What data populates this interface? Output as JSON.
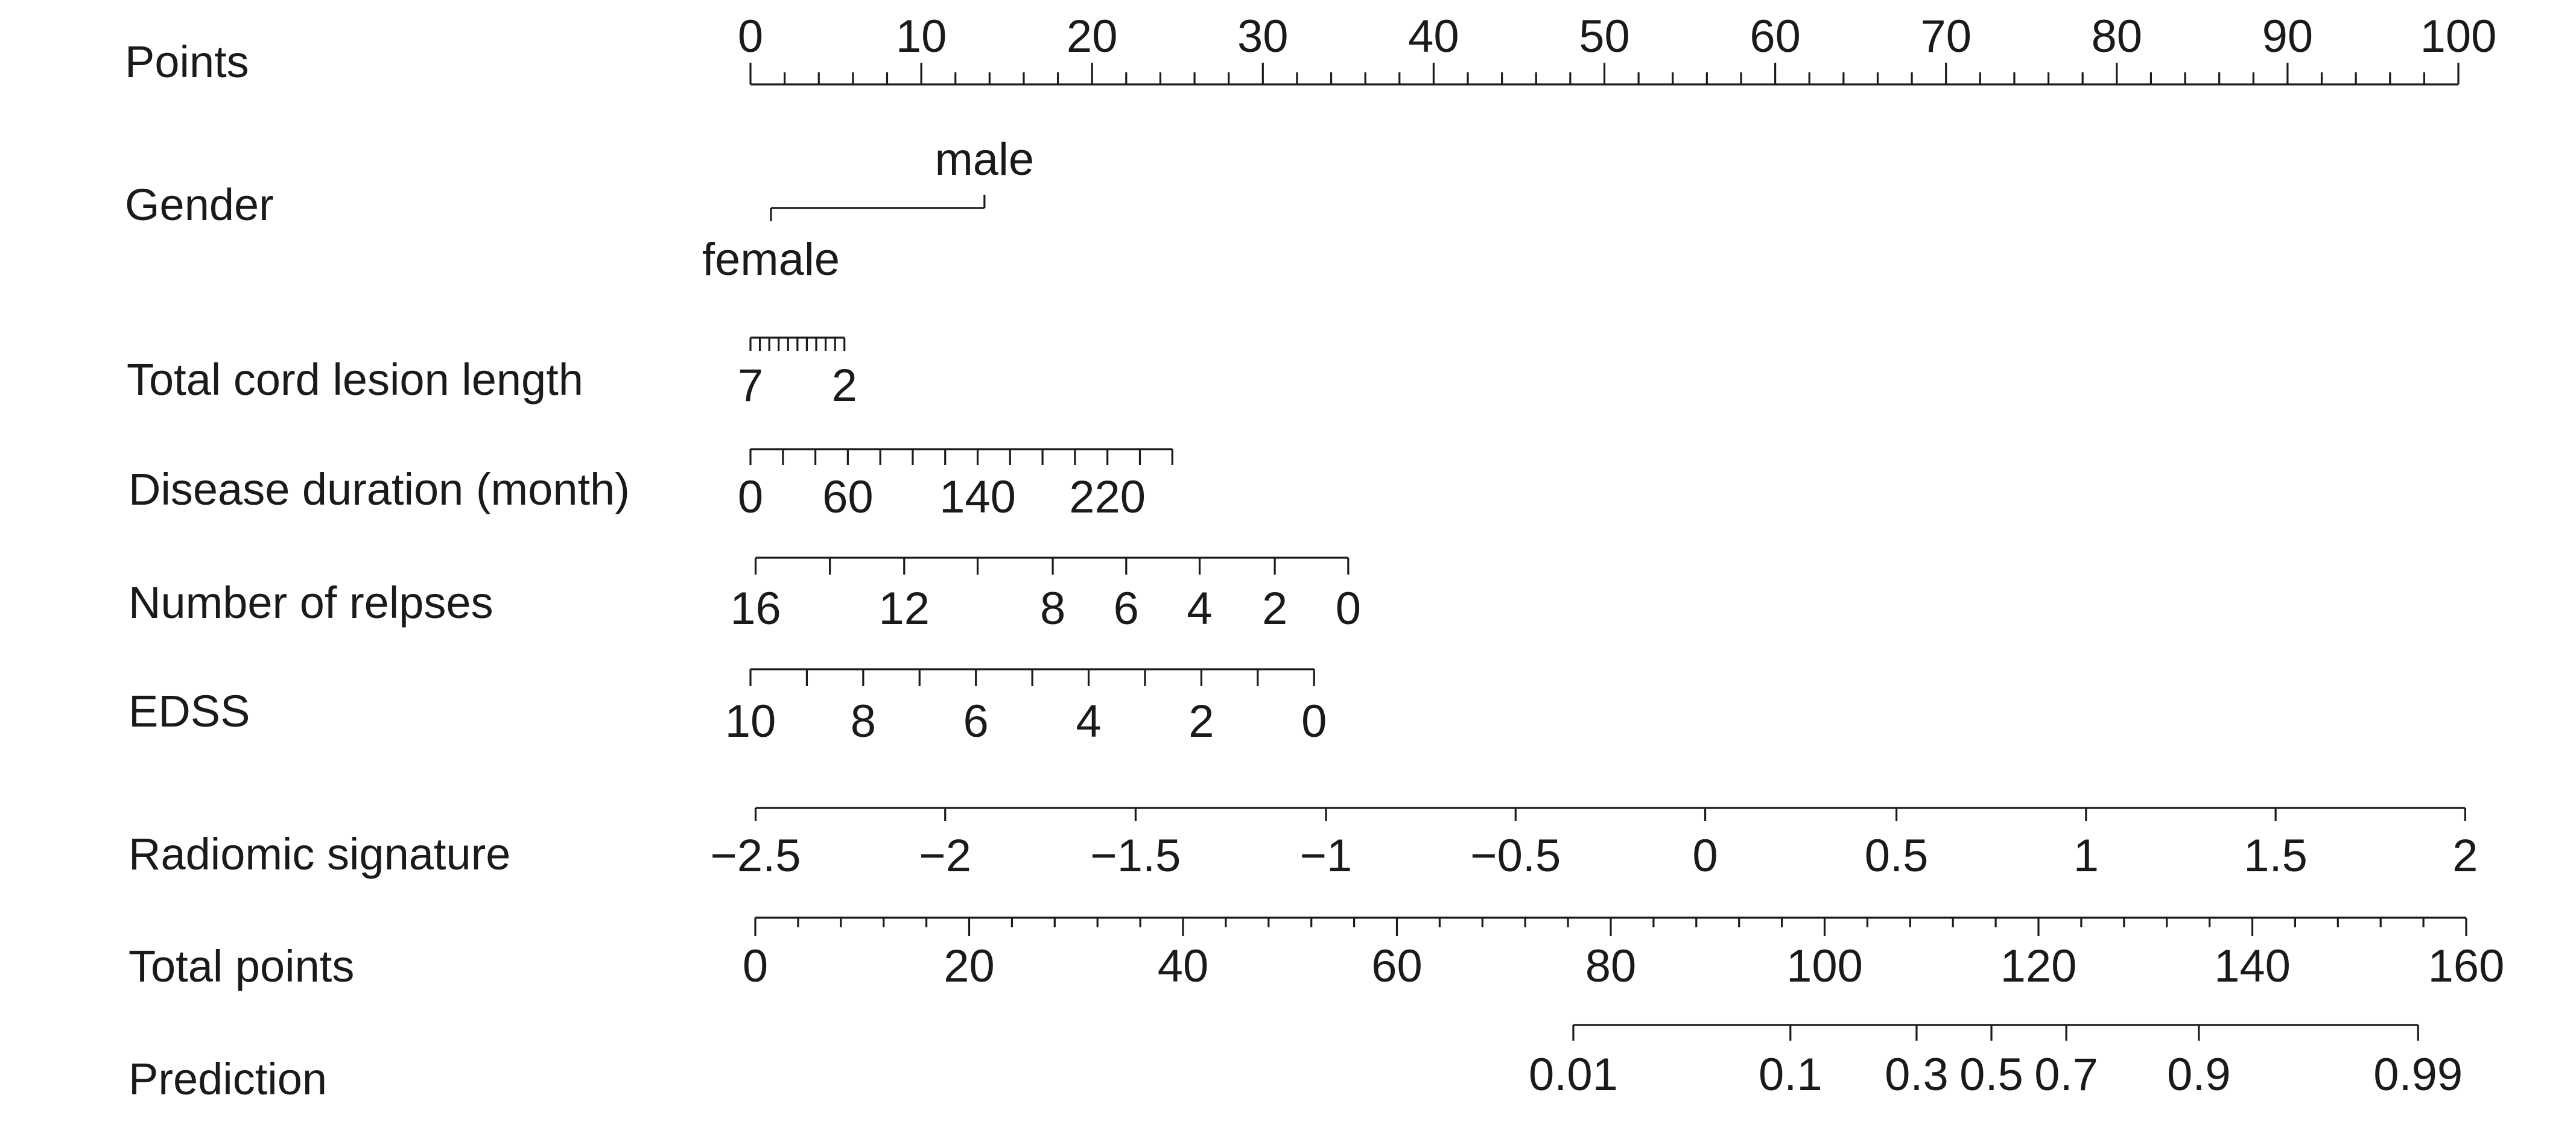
{
  "chart_data": {
    "type": "nomogram",
    "points_range": [
      0,
      100
    ],
    "rows": [
      {
        "key": "points",
        "label": "Points",
        "tick_labels": [
          "0",
          "10",
          "20",
          "30",
          "40",
          "50",
          "60",
          "70",
          "80",
          "90",
          "100"
        ],
        "values": [
          0,
          10,
          20,
          30,
          40,
          50,
          60,
          70,
          80,
          90,
          100
        ],
        "minor_step": 2,
        "label_side": "above",
        "points_at": [
          0,
          10,
          20,
          30,
          40,
          50,
          60,
          70,
          80,
          90,
          100
        ]
      },
      {
        "key": "gender",
        "label": "Gender",
        "categories": [
          {
            "label": "female",
            "points": 1.2,
            "label_side": "below"
          },
          {
            "label": "male",
            "points": 13.7,
            "label_side": "above"
          }
        ]
      },
      {
        "key": "total_cord_lesion_length",
        "label": "Total cord lesion length",
        "tick_labels": [
          "7",
          "2"
        ],
        "labeled_values": [
          7,
          2
        ],
        "values": [
          7,
          6.5,
          6,
          5.5,
          5,
          4.5,
          4,
          3.5,
          3,
          2.5,
          2
        ],
        "points_at": [
          0,
          0.55,
          1.1,
          1.65,
          2.2,
          2.75,
          3.3,
          3.85,
          4.4,
          4.95,
          5.5
        ]
      },
      {
        "key": "disease_duration",
        "label": "Disease duration (month)",
        "tick_labels": [
          "0",
          "60",
          "140",
          "220"
        ],
        "labeled_values": [
          0,
          60,
          140,
          220
        ],
        "values": [
          0,
          20,
          40,
          60,
          80,
          100,
          120,
          140,
          160,
          180,
          200,
          220,
          240,
          260
        ],
        "points_at": [
          0,
          1.9,
          3.8,
          5.7,
          7.6,
          9.5,
          11.4,
          13.3,
          15.2,
          17.1,
          19.0,
          20.9,
          22.8,
          24.7
        ]
      },
      {
        "key": "number_of_relapses",
        "label": "Number of relpses",
        "tick_labels": [
          "16",
          "12",
          "8",
          "6",
          "4",
          "2",
          "0"
        ],
        "labeled_values": [
          16,
          12,
          8,
          6,
          4,
          2,
          0
        ],
        "values": [
          16,
          14,
          12,
          10,
          8,
          6,
          4,
          2,
          0
        ],
        "points_at": [
          0.3,
          4.65,
          9.0,
          13.3,
          17.7,
          22.0,
          26.3,
          30.7,
          35.0
        ]
      },
      {
        "key": "edss",
        "label": "EDSS",
        "tick_labels": [
          "10",
          "8",
          "6",
          "4",
          "2",
          "0"
        ],
        "labeled_values": [
          10,
          8,
          6,
          4,
          2,
          0
        ],
        "values": [
          10,
          9,
          8,
          7,
          6,
          5,
          4,
          3,
          2,
          1,
          0
        ],
        "points_at": [
          0,
          3.3,
          6.6,
          9.9,
          13.2,
          16.5,
          19.8,
          23.1,
          26.4,
          29.7,
          33.0
        ]
      },
      {
        "key": "radiomic_signature",
        "label": "Radiomic signature",
        "tick_labels": [
          "−2.5",
          "−2",
          "−1.5",
          "−1",
          "−0.5",
          "0",
          "0.5",
          "1",
          "1.5",
          "2"
        ],
        "values": [
          -2.5,
          -2,
          -1.5,
          -1,
          -0.5,
          0,
          0.5,
          1,
          1.5,
          2
        ],
        "label_side": "below",
        "points_at": [
          0.3,
          11.4,
          22.55,
          33.7,
          44.8,
          55.9,
          67.1,
          78.2,
          89.3,
          100.4
        ]
      },
      {
        "key": "total_points",
        "label": "Total points",
        "tick_labels": [
          "0",
          "20",
          "40",
          "60",
          "80",
          "100",
          "120",
          "140",
          "160"
        ],
        "values": [
          0,
          20,
          40,
          60,
          80,
          100,
          120,
          140,
          160
        ],
        "minor_step": 4,
        "scale_range": [
          0,
          160
        ]
      },
      {
        "key": "prediction",
        "label": "Prediction",
        "tick_labels": [
          "0.01",
          "0.1",
          "0.3",
          "0.5",
          "0.7",
          "0.9",
          "0.99"
        ],
        "values": [
          0.01,
          0.1,
          0.3,
          0.5,
          0.7,
          0.9,
          0.99
        ],
        "total_points_at": [
          76.5,
          96.8,
          108.6,
          115.6,
          122.6,
          135.0,
          155.5
        ]
      }
    ]
  }
}
